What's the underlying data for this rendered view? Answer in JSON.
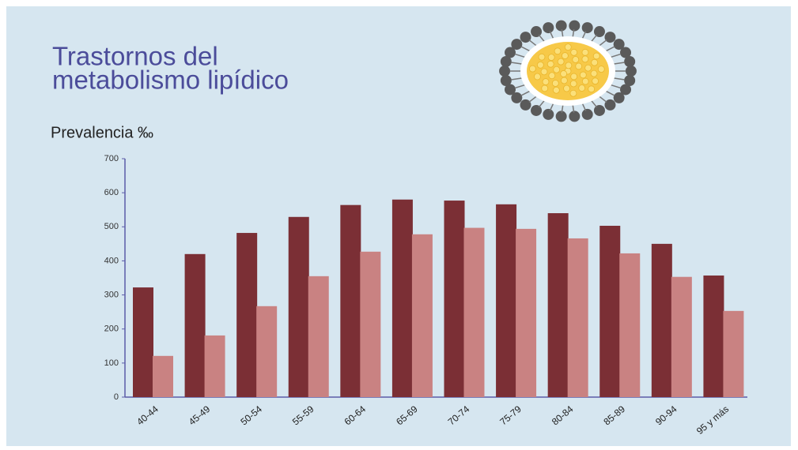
{
  "chart_data": {
    "type": "bar",
    "title": "Trastornos del metabolismo lipídico",
    "subtitle": "Prevalencia ‰",
    "categories": [
      "40-44",
      "45-49",
      "50-54",
      "55-59",
      "60-64",
      "65-69",
      "70-74",
      "75-79",
      "80-84",
      "85-89",
      "90-94",
      "95 y más"
    ],
    "series": [
      {
        "color": "#7b2f35",
        "values": [
          322,
          420,
          482,
          529,
          564,
          580,
          577,
          566,
          540,
          503,
          450,
          357
        ]
      },
      {
        "color": "#c98282",
        "values": [
          121,
          181,
          267,
          355,
          427,
          478,
          497,
          494,
          466,
          422,
          353,
          253
        ]
      }
    ],
    "ylim": [
      0,
      700
    ],
    "yticks": [
      0,
      100,
      200,
      300,
      400,
      500,
      600,
      700
    ],
    "grid": false
  }
}
